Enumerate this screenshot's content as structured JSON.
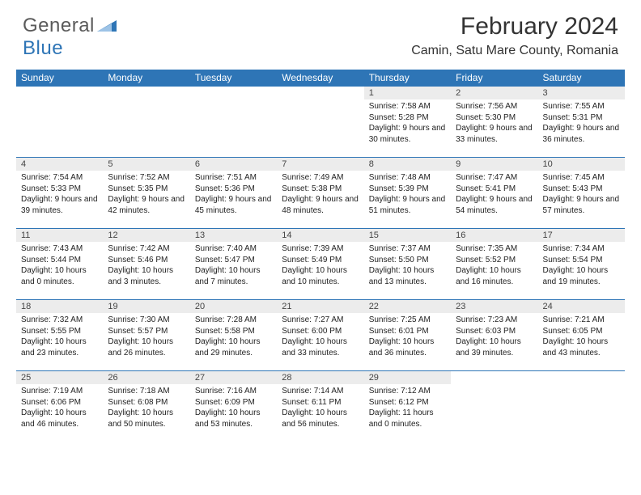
{
  "brand": {
    "part1": "General",
    "part2": "Blue",
    "triangle_color": "#2e75b6"
  },
  "title": "February 2024",
  "location": "Camin, Satu Mare County, Romania",
  "colors": {
    "header_bg": "#2e75b6",
    "header_text": "#ffffff",
    "daynum_bg": "#ececec",
    "row_border": "#2e75b6",
    "body_text": "#222222",
    "title_text": "#333333"
  },
  "typography": {
    "title_fontsize": 30,
    "location_fontsize": 16,
    "weekday_fontsize": 12,
    "cell_fontsize": 10
  },
  "weekdays": [
    "Sunday",
    "Monday",
    "Tuesday",
    "Wednesday",
    "Thursday",
    "Friday",
    "Saturday"
  ],
  "weeks": [
    [
      null,
      null,
      null,
      null,
      {
        "n": "1",
        "sr": "7:58 AM",
        "ss": "5:28 PM",
        "dl": "9 hours and 30 minutes."
      },
      {
        "n": "2",
        "sr": "7:56 AM",
        "ss": "5:30 PM",
        "dl": "9 hours and 33 minutes."
      },
      {
        "n": "3",
        "sr": "7:55 AM",
        "ss": "5:31 PM",
        "dl": "9 hours and 36 minutes."
      }
    ],
    [
      {
        "n": "4",
        "sr": "7:54 AM",
        "ss": "5:33 PM",
        "dl": "9 hours and 39 minutes."
      },
      {
        "n": "5",
        "sr": "7:52 AM",
        "ss": "5:35 PM",
        "dl": "9 hours and 42 minutes."
      },
      {
        "n": "6",
        "sr": "7:51 AM",
        "ss": "5:36 PM",
        "dl": "9 hours and 45 minutes."
      },
      {
        "n": "7",
        "sr": "7:49 AM",
        "ss": "5:38 PM",
        "dl": "9 hours and 48 minutes."
      },
      {
        "n": "8",
        "sr": "7:48 AM",
        "ss": "5:39 PM",
        "dl": "9 hours and 51 minutes."
      },
      {
        "n": "9",
        "sr": "7:47 AM",
        "ss": "5:41 PM",
        "dl": "9 hours and 54 minutes."
      },
      {
        "n": "10",
        "sr": "7:45 AM",
        "ss": "5:43 PM",
        "dl": "9 hours and 57 minutes."
      }
    ],
    [
      {
        "n": "11",
        "sr": "7:43 AM",
        "ss": "5:44 PM",
        "dl": "10 hours and 0 minutes."
      },
      {
        "n": "12",
        "sr": "7:42 AM",
        "ss": "5:46 PM",
        "dl": "10 hours and 3 minutes."
      },
      {
        "n": "13",
        "sr": "7:40 AM",
        "ss": "5:47 PM",
        "dl": "10 hours and 7 minutes."
      },
      {
        "n": "14",
        "sr": "7:39 AM",
        "ss": "5:49 PM",
        "dl": "10 hours and 10 minutes."
      },
      {
        "n": "15",
        "sr": "7:37 AM",
        "ss": "5:50 PM",
        "dl": "10 hours and 13 minutes."
      },
      {
        "n": "16",
        "sr": "7:35 AM",
        "ss": "5:52 PM",
        "dl": "10 hours and 16 minutes."
      },
      {
        "n": "17",
        "sr": "7:34 AM",
        "ss": "5:54 PM",
        "dl": "10 hours and 19 minutes."
      }
    ],
    [
      {
        "n": "18",
        "sr": "7:32 AM",
        "ss": "5:55 PM",
        "dl": "10 hours and 23 minutes."
      },
      {
        "n": "19",
        "sr": "7:30 AM",
        "ss": "5:57 PM",
        "dl": "10 hours and 26 minutes."
      },
      {
        "n": "20",
        "sr": "7:28 AM",
        "ss": "5:58 PM",
        "dl": "10 hours and 29 minutes."
      },
      {
        "n": "21",
        "sr": "7:27 AM",
        "ss": "6:00 PM",
        "dl": "10 hours and 33 minutes."
      },
      {
        "n": "22",
        "sr": "7:25 AM",
        "ss": "6:01 PM",
        "dl": "10 hours and 36 minutes."
      },
      {
        "n": "23",
        "sr": "7:23 AM",
        "ss": "6:03 PM",
        "dl": "10 hours and 39 minutes."
      },
      {
        "n": "24",
        "sr": "7:21 AM",
        "ss": "6:05 PM",
        "dl": "10 hours and 43 minutes."
      }
    ],
    [
      {
        "n": "25",
        "sr": "7:19 AM",
        "ss": "6:06 PM",
        "dl": "10 hours and 46 minutes."
      },
      {
        "n": "26",
        "sr": "7:18 AM",
        "ss": "6:08 PM",
        "dl": "10 hours and 50 minutes."
      },
      {
        "n": "27",
        "sr": "7:16 AM",
        "ss": "6:09 PM",
        "dl": "10 hours and 53 minutes."
      },
      {
        "n": "28",
        "sr": "7:14 AM",
        "ss": "6:11 PM",
        "dl": "10 hours and 56 minutes."
      },
      {
        "n": "29",
        "sr": "7:12 AM",
        "ss": "6:12 PM",
        "dl": "11 hours and 0 minutes."
      },
      null,
      null
    ]
  ],
  "labels": {
    "sunrise": "Sunrise:",
    "sunset": "Sunset:",
    "daylight": "Daylight:"
  }
}
